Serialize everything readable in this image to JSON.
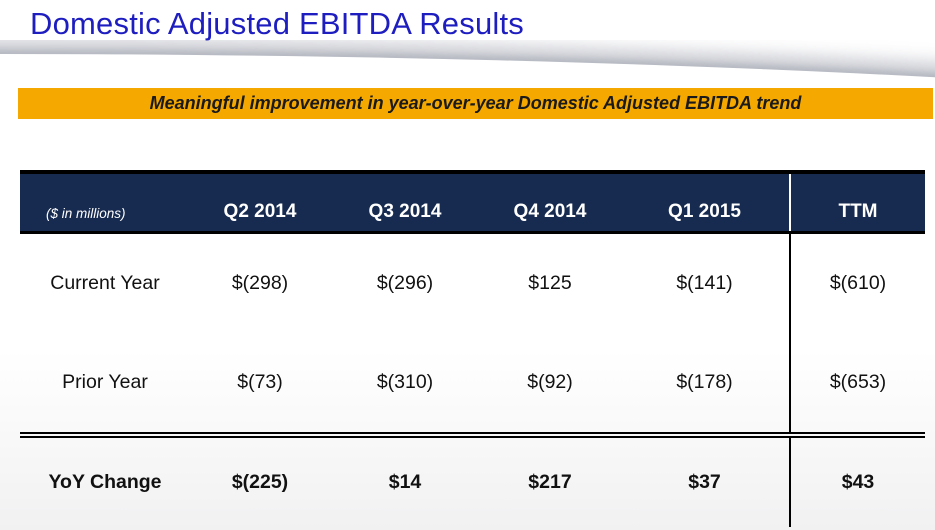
{
  "title": "Domestic Adjusted EBITDA Results",
  "banner": {
    "text": "Meaningful improvement in year-over-year Domestic Adjusted EBITDA trend"
  },
  "table": {
    "corner_label": "($ in millions)",
    "columns": [
      "Q2 2014",
      "Q3 2014",
      "Q4 2014",
      "Q1 2015",
      "TTM"
    ],
    "rows": [
      {
        "label": "Current Year",
        "values": [
          "$(298)",
          "$(296)",
          "$125",
          "$(141)",
          "$(610)"
        ]
      },
      {
        "label": "Prior Year",
        "values": [
          "$(73)",
          "$(310)",
          "$(92)",
          "$(178)",
          "$(653)"
        ]
      },
      {
        "label": "YoY Change",
        "values": [
          "$(225)",
          "$14",
          "$217",
          "$37",
          "$43"
        ]
      }
    ]
  },
  "colors": {
    "title_blue": "#1e1ec0",
    "banner_gold": "#f5a800",
    "header_navy": "#172b50",
    "body_text": "#111111"
  }
}
